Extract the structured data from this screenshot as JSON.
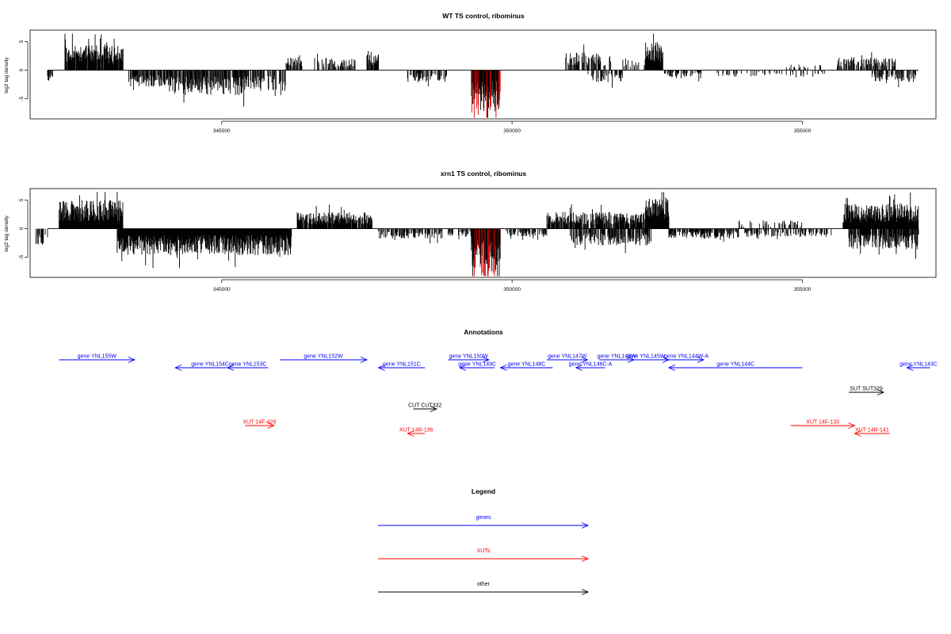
{
  "colors": {
    "axis": "#000000",
    "bar": "#000000",
    "highlight": "#dd0000",
    "gene": "#0000ff",
    "xut": "#ff0000",
    "other": "#000000"
  },
  "chart_data": [
    {
      "type": "bar",
      "title": "WT TS control, ribominus",
      "ylabel": "log2 tag density",
      "xlim": [
        341700,
        357300
      ],
      "ylim": [
        -8.5,
        7
      ],
      "xticks": [
        345000,
        350000,
        355000
      ],
      "xtick_labels": [
        "345000",
        "350000",
        "355000"
      ],
      "yticks": [
        5,
        0,
        -5
      ],
      "ytick_labels": [
        "5",
        "0",
        "-5"
      ],
      "highlight_range": [
        349300,
        349800
      ],
      "seed": 11,
      "regions": [
        {
          "x": [
            342000,
            342100
          ],
          "sign": -1,
          "level": 1.5,
          "density": 0.5
        },
        {
          "x": [
            342300,
            343300
          ],
          "sign": 1,
          "level": 3.0,
          "density": 0.9
        },
        {
          "x": [
            343400,
            344100
          ],
          "sign": -1,
          "level": 2.0,
          "density": 0.7
        },
        {
          "x": [
            344100,
            345400
          ],
          "sign": -1,
          "level": 3.0,
          "density": 0.8
        },
        {
          "x": [
            345400,
            346100
          ],
          "sign": -1,
          "level": 2.5,
          "density": 0.5
        },
        {
          "x": [
            346100,
            346400
          ],
          "sign": 1,
          "level": 1.8,
          "density": 0.6
        },
        {
          "x": [
            346600,
            347300
          ],
          "sign": 1,
          "level": 1.5,
          "density": 0.5
        },
        {
          "x": [
            347500,
            347700
          ],
          "sign": 1,
          "level": 2.0,
          "density": 0.9
        },
        {
          "x": [
            348200,
            348900
          ],
          "sign": -1,
          "level": 1.5,
          "density": 0.5
        },
        {
          "x": [
            349300,
            349800
          ],
          "sign": -1,
          "level": 5.0,
          "density": 1.0
        },
        {
          "x": [
            350900,
            351700
          ],
          "sign": 1,
          "level": 2.2,
          "density": 0.6
        },
        {
          "x": [
            351300,
            351900
          ],
          "sign": -1,
          "level": 1.5,
          "density": 0.4
        },
        {
          "x": [
            351900,
            352500
          ],
          "sign": 1,
          "level": 1.5,
          "density": 0.4
        },
        {
          "x": [
            352300,
            352600
          ],
          "sign": 1,
          "level": 3.5,
          "density": 1.0
        },
        {
          "x": [
            352600,
            353300
          ],
          "sign": -1,
          "level": 1.0,
          "density": 0.5
        },
        {
          "x": [
            353500,
            355400
          ],
          "sign": -1,
          "level": 0.8,
          "density": 0.2
        },
        {
          "x": [
            354700,
            355400
          ],
          "sign": 1,
          "level": 0.8,
          "density": 0.2
        },
        {
          "x": [
            355600,
            356600
          ],
          "sign": 1,
          "level": 1.5,
          "density": 0.5
        },
        {
          "x": [
            356200,
            357000
          ],
          "sign": -1,
          "level": 1.5,
          "density": 0.5
        }
      ]
    },
    {
      "type": "bar",
      "title": "xrn1 TS control, ribominus",
      "ylabel": "log2 tag density",
      "xlim": [
        341700,
        357300
      ],
      "ylim": [
        -8.5,
        7
      ],
      "xticks": [
        345000,
        350000,
        355000
      ],
      "xtick_labels": [
        "345000",
        "350000",
        "355000"
      ],
      "yticks": [
        5,
        0,
        -5
      ],
      "ytick_labels": [
        "5",
        "0",
        "-5"
      ],
      "highlight_range": [
        349300,
        349800
      ],
      "seed": 29,
      "regions": [
        {
          "x": [
            341800,
            342000
          ],
          "sign": -1,
          "level": 2.0,
          "density": 0.6
        },
        {
          "x": [
            342200,
            343300
          ],
          "sign": 1,
          "level": 3.5,
          "density": 1.0
        },
        {
          "x": [
            343200,
            346200
          ],
          "sign": -1,
          "level": 3.2,
          "density": 1.0
        },
        {
          "x": [
            346300,
            347600
          ],
          "sign": 1,
          "level": 2.0,
          "density": 0.9
        },
        {
          "x": [
            347700,
            348800
          ],
          "sign": -1,
          "level": 1.2,
          "density": 0.6
        },
        {
          "x": [
            348900,
            349300
          ],
          "sign": -1,
          "level": 1.0,
          "density": 0.5
        },
        {
          "x": [
            349300,
            349800
          ],
          "sign": -1,
          "level": 5.0,
          "density": 1.0
        },
        {
          "x": [
            349900,
            350600
          ],
          "sign": -1,
          "level": 1.0,
          "density": 0.5
        },
        {
          "x": [
            350600,
            352300
          ],
          "sign": 1,
          "level": 2.0,
          "density": 0.8
        },
        {
          "x": [
            351000,
            352400
          ],
          "sign": -1,
          "level": 2.0,
          "density": 0.7
        },
        {
          "x": [
            352300,
            352700
          ],
          "sign": 1,
          "level": 3.8,
          "density": 1.0
        },
        {
          "x": [
            352700,
            353900
          ],
          "sign": -1,
          "level": 1.2,
          "density": 0.7
        },
        {
          "x": [
            353900,
            355000
          ],
          "sign": 1,
          "level": 1.0,
          "density": 0.3
        },
        {
          "x": [
            354000,
            355500
          ],
          "sign": -1,
          "level": 1.0,
          "density": 0.5
        },
        {
          "x": [
            355700,
            357000
          ],
          "sign": 1,
          "level": 3.0,
          "density": 1.0
        },
        {
          "x": [
            355800,
            357000
          ],
          "sign": -1,
          "level": 2.5,
          "density": 0.8
        }
      ]
    }
  ],
  "annotations": {
    "title": "Annotations",
    "items": [
      {
        "label": "gene YNL155W",
        "type": "gene",
        "x1": 342200,
        "x2": 343500,
        "dir": 1,
        "row": 0
      },
      {
        "label": "gene YNL154C",
        "type": "gene",
        "x1": 344200,
        "x2": 345400,
        "dir": -1,
        "row": 1
      },
      {
        "label": "gene YNL153C",
        "type": "gene",
        "x1": 345100,
        "x2": 345800,
        "dir": -1,
        "row": 1
      },
      {
        "label": "gene YNL152W",
        "type": "gene",
        "x1": 346000,
        "x2": 347500,
        "dir": 1,
        "row": 0
      },
      {
        "label": "gene YNL151C",
        "type": "gene",
        "x1": 347700,
        "x2": 348500,
        "dir": -1,
        "row": 1
      },
      {
        "label": "gene YNL150W",
        "type": "gene",
        "x1": 348900,
        "x2": 349600,
        "dir": 1,
        "row": 0
      },
      {
        "label": "gene YNL149C",
        "type": "gene",
        "x1": 349100,
        "x2": 349700,
        "dir": -1,
        "row": 1
      },
      {
        "label": "gene YNL148C",
        "type": "gene",
        "x1": 349800,
        "x2": 350700,
        "dir": -1,
        "row": 1
      },
      {
        "label": "gene YNL147W",
        "type": "gene",
        "x1": 350600,
        "x2": 351300,
        "dir": 1,
        "row": 0
      },
      {
        "label": "gene YNL146C-A",
        "type": "gene",
        "x1": 351100,
        "x2": 351600,
        "dir": -1,
        "row": 1
      },
      {
        "label": "gene YNL146W",
        "type": "gene",
        "x1": 351500,
        "x2": 352100,
        "dir": 1,
        "row": 0
      },
      {
        "label": "gene YNL145W",
        "type": "gene",
        "x1": 351900,
        "x2": 352700,
        "dir": 1,
        "row": 0
      },
      {
        "label": "gene YNL144W-A",
        "type": "gene",
        "x1": 352700,
        "x2": 353300,
        "dir": 1,
        "row": 0
      },
      {
        "label": "gene YNL144C",
        "type": "gene",
        "x1": 352700,
        "x2": 355000,
        "dir": -1,
        "row": 1
      },
      {
        "label": "gene YNL143C",
        "type": "gene",
        "x1": 356800,
        "x2": 357200,
        "dir": -1,
        "row": 1
      },
      {
        "label": "SUT SUT329",
        "type": "other",
        "x1": 355800,
        "x2": 356400,
        "dir": 1,
        "row": 3
      },
      {
        "label": "CUT CUT332",
        "type": "other",
        "x1": 348300,
        "x2": 348700,
        "dir": 1,
        "row": 5
      },
      {
        "label": "XUT 14F-426",
        "type": "xut",
        "x1": 345400,
        "x2": 345900,
        "dir": 1,
        "row": 7
      },
      {
        "label": "XUT 14R-136",
        "type": "xut",
        "x1": 348200,
        "x2": 348500,
        "dir": -1,
        "row": 8
      },
      {
        "label": "XUT 14F-133",
        "type": "xut",
        "x1": 354800,
        "x2": 355900,
        "dir": 1,
        "row": 7
      },
      {
        "label": "XUT 14R-141",
        "type": "xut",
        "x1": 355900,
        "x2": 356500,
        "dir": -1,
        "row": 8
      }
    ]
  },
  "legend": {
    "title": "Legend",
    "items": [
      {
        "label": "genes",
        "type": "gene"
      },
      {
        "label": "XUTs",
        "type": "xut"
      },
      {
        "label": "other",
        "type": "other"
      }
    ]
  }
}
